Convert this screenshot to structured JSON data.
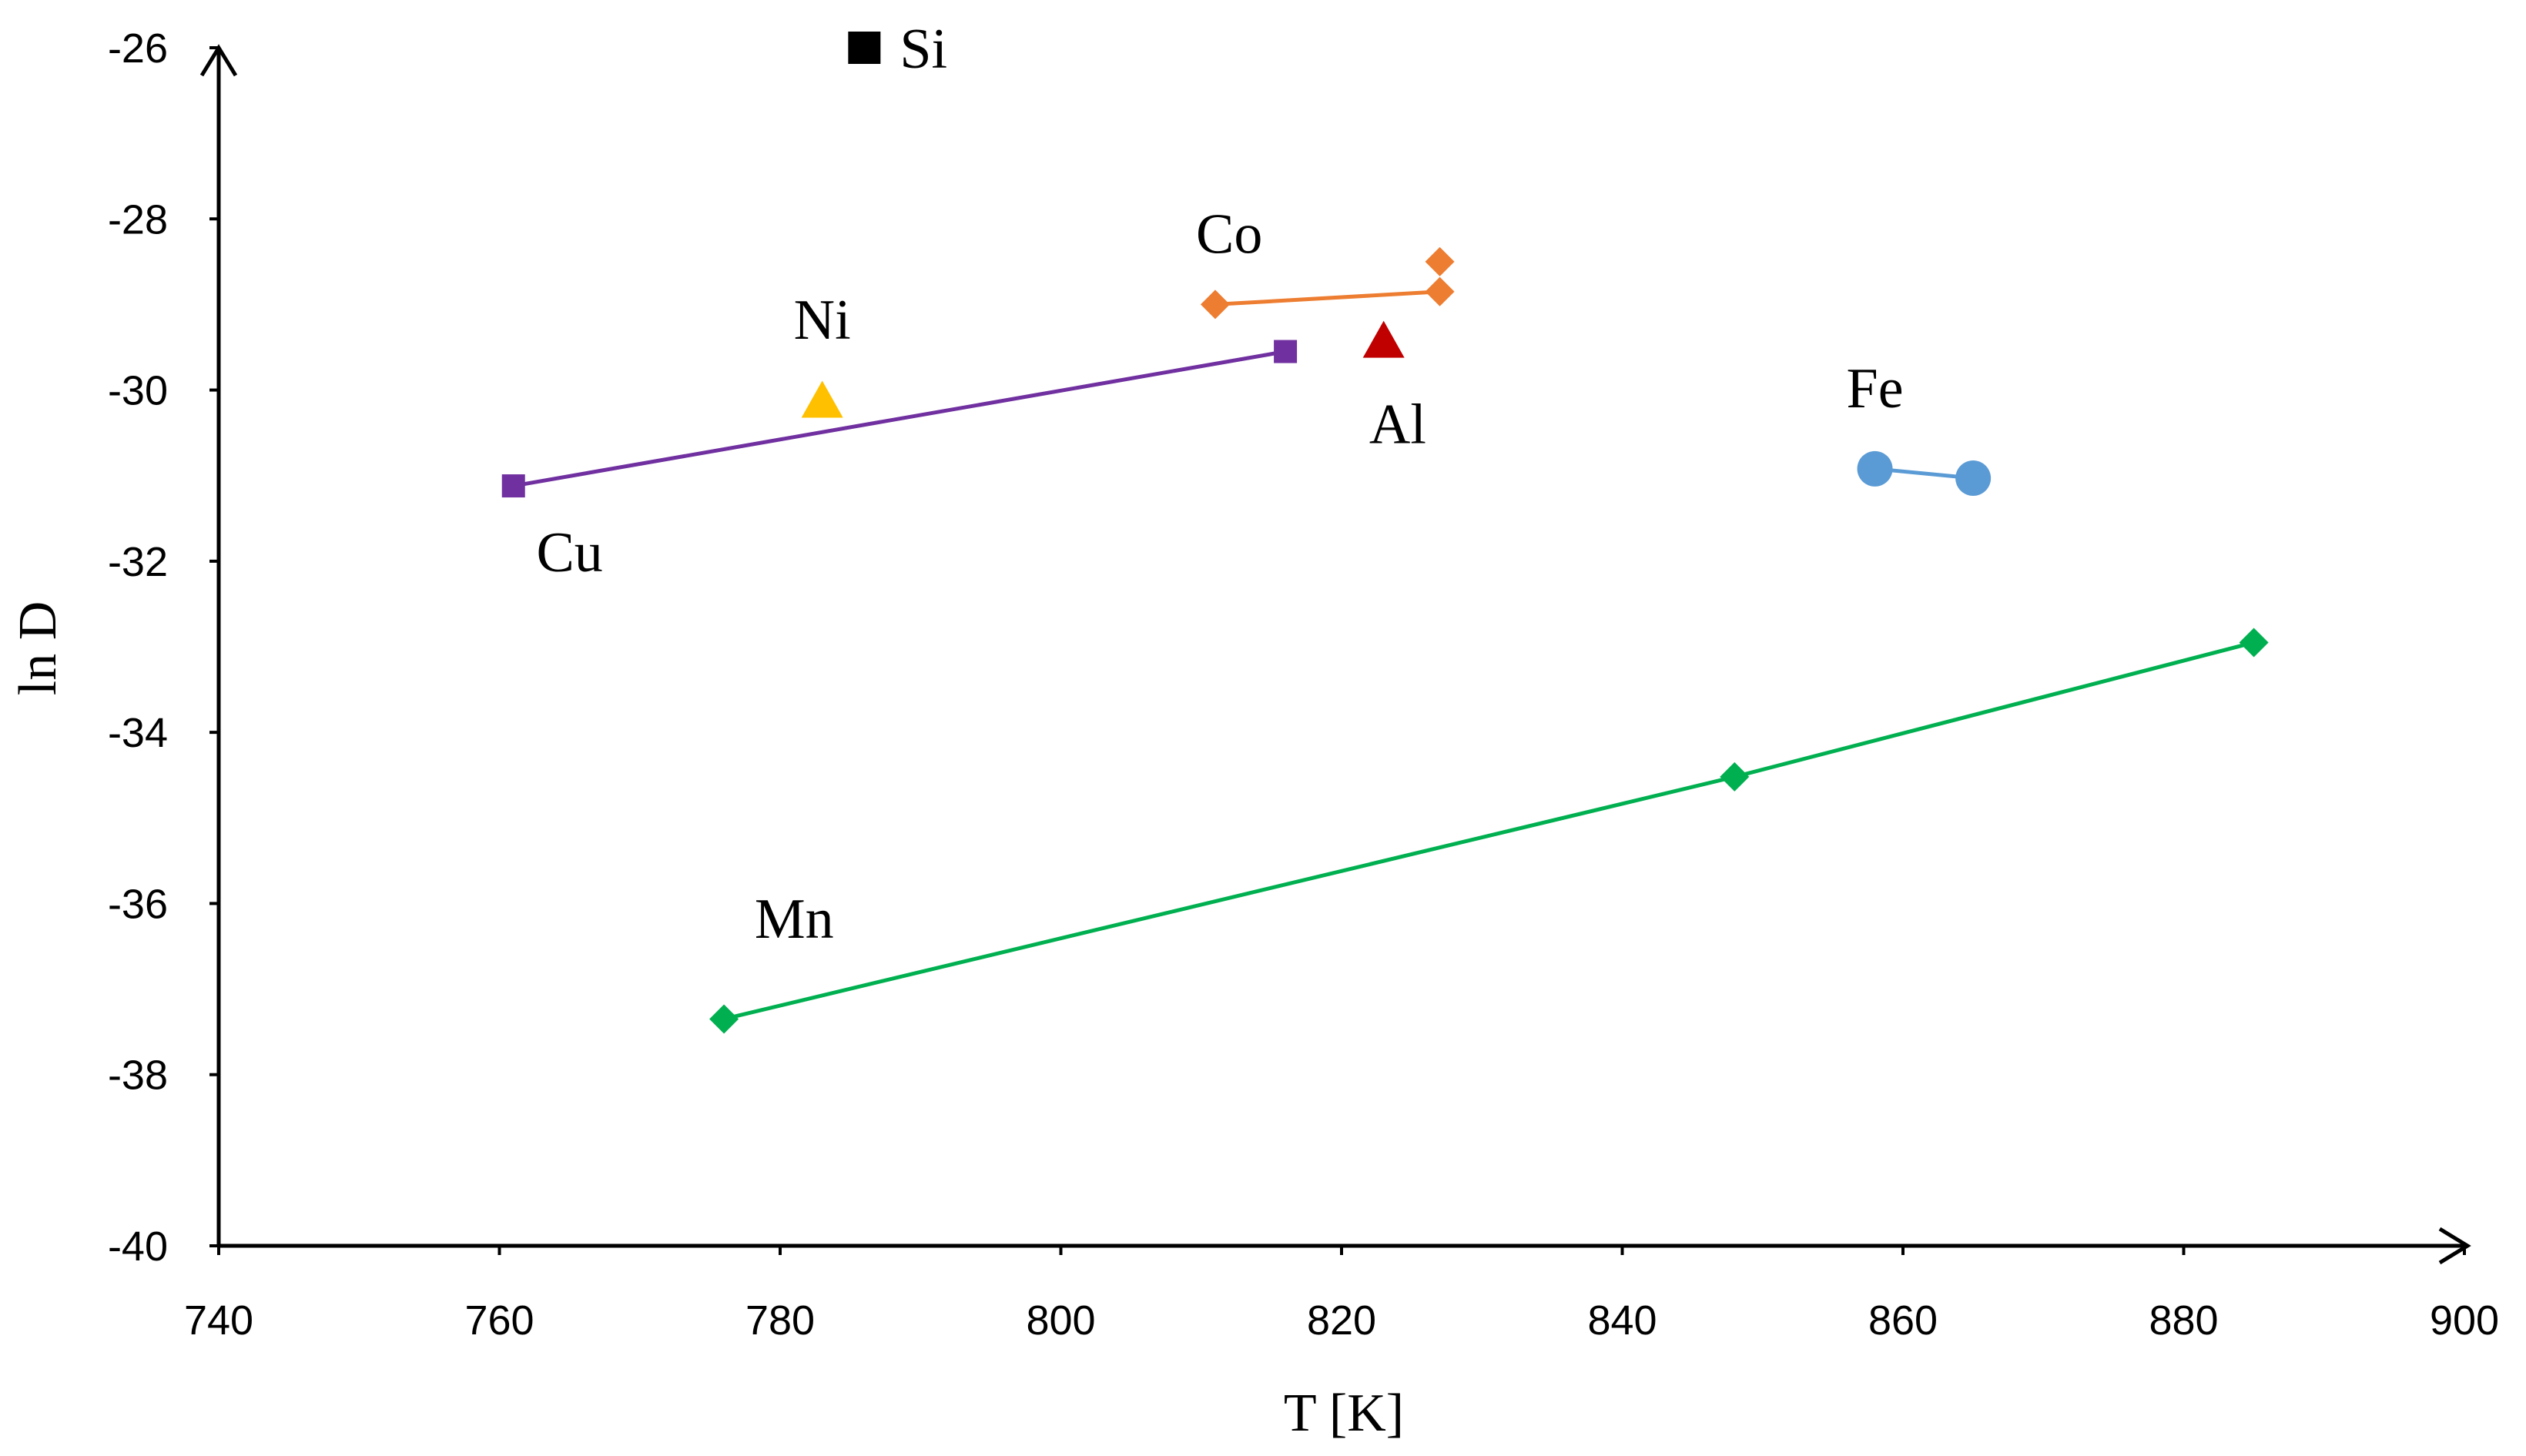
{
  "chart_data": {
    "type": "scatter",
    "title": "",
    "xlabel": "T [K]",
    "ylabel": "ln D",
    "xlim": [
      740,
      900
    ],
    "ylim": [
      -40,
      -26
    ],
    "xticks": [
      740,
      760,
      780,
      800,
      820,
      840,
      860,
      880,
      900
    ],
    "yticks": [
      -40,
      -38,
      -36,
      -34,
      -32,
      -30,
      -28,
      -26
    ],
    "grid": false,
    "legend": "none",
    "series": [
      {
        "name": "Si",
        "label": "Si",
        "marker": "square",
        "color": "#000000",
        "line": false,
        "points": [
          {
            "x": 786,
            "y": -26.0
          }
        ],
        "label_anchor": {
          "x": 786,
          "y": -26.0
        },
        "label_offset": "right"
      },
      {
        "name": "Co",
        "label": "Co",
        "marker": "diamond",
        "color": "#ED7D31",
        "line": true,
        "points": [
          {
            "x": 811,
            "y": -29.0
          },
          {
            "x": 827,
            "y": -28.85
          }
        ],
        "extra_points": [
          {
            "x": 827,
            "y": -28.5
          }
        ],
        "label_anchor": {
          "x": 812,
          "y": -28.4
        },
        "label_offset": "above"
      },
      {
        "name": "Ni",
        "label": "Ni",
        "marker": "triangle",
        "color": "#FFC000",
        "line": false,
        "points": [
          {
            "x": 783,
            "y": -30.15
          }
        ],
        "label_anchor": {
          "x": 783,
          "y": -29.4
        },
        "label_offset": "above"
      },
      {
        "name": "Al",
        "label": "Al",
        "marker": "triangle",
        "color": "#C00000",
        "line": false,
        "points": [
          {
            "x": 823,
            "y": -29.45
          }
        ],
        "label_anchor": {
          "x": 824,
          "y": -30.35
        },
        "label_offset": "below"
      },
      {
        "name": "Cu",
        "label": "Cu",
        "marker": "square",
        "color": "#7030A0",
        "line": true,
        "points": [
          {
            "x": 761,
            "y": -31.12
          },
          {
            "x": 816,
            "y": -29.55
          }
        ],
        "label_anchor": {
          "x": 765,
          "y": -31.85
        },
        "label_offset": "below"
      },
      {
        "name": "Fe",
        "label": "Fe",
        "marker": "circle",
        "color": "#5B9BD5",
        "line": true,
        "points": [
          {
            "x": 858,
            "y": -30.92
          },
          {
            "x": 865,
            "y": -31.03
          }
        ],
        "label_anchor": {
          "x": 858,
          "y": -30.2
        },
        "label_offset": "above"
      },
      {
        "name": "Mn",
        "label": "Mn",
        "marker": "diamond",
        "color": "#00B050",
        "line": true,
        "points": [
          {
            "x": 776,
            "y": -37.35
          },
          {
            "x": 848,
            "y": -34.52
          },
          {
            "x": 885,
            "y": -32.95
          }
        ],
        "label_anchor": {
          "x": 781,
          "y": -36.4
        },
        "label_offset": "above"
      }
    ]
  }
}
